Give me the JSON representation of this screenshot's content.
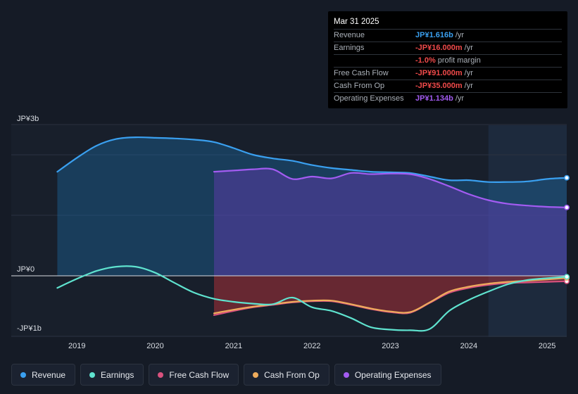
{
  "tooltip": {
    "date": "Mar 31 2025",
    "rows": [
      {
        "label": "Revenue",
        "value": "JP¥1.616b",
        "unit": "/yr",
        "color": "#3aa0f0"
      },
      {
        "label": "Earnings",
        "value": "-JP¥16.000m",
        "unit": "/yr",
        "color": "#f04a4a"
      },
      {
        "label": "",
        "value": "-1.0%",
        "unit": "profit margin",
        "color": "#f04a4a"
      },
      {
        "label": "Free Cash Flow",
        "value": "-JP¥91.000m",
        "unit": "/yr",
        "color": "#f04a4a"
      },
      {
        "label": "Cash From Op",
        "value": "-JP¥35.000m",
        "unit": "/yr",
        "color": "#f04a4a"
      },
      {
        "label": "Operating Expenses",
        "value": "JP¥1.134b",
        "unit": "/yr",
        "color": "#a35cf2"
      }
    ]
  },
  "legend": [
    {
      "label": "Revenue",
      "color": "#3aa0f0"
    },
    {
      "label": "Earnings",
      "color": "#5fe3cf"
    },
    {
      "label": "Free Cash Flow",
      "color": "#d9527e"
    },
    {
      "label": "Cash From Op",
      "color": "#eeac5c"
    },
    {
      "label": "Operating Expenses",
      "color": "#a35cf2"
    }
  ],
  "chart_data": {
    "type": "area",
    "y_tick_labels": [
      "JP¥3b",
      "JP¥0",
      "-JP¥1b"
    ],
    "ylim": [
      -1.0,
      2.5
    ],
    "xlim": [
      2018.45,
      2025.25
    ],
    "x_tick_labels": [
      "2019",
      "2020",
      "2021",
      "2022",
      "2023",
      "2024",
      "2025"
    ],
    "x_ticks": [
      2019,
      2020,
      2021,
      2022,
      2023,
      2024,
      2025
    ],
    "forecast_shade_start": 2024.25,
    "series": [
      {
        "name": "Revenue",
        "color": "#3aa0f0",
        "x": [
          2018.75,
          2019.0,
          2019.25,
          2019.5,
          2019.75,
          2020.0,
          2020.25,
          2020.5,
          2020.75,
          2021.0,
          2021.25,
          2021.5,
          2021.75,
          2022.0,
          2022.25,
          2022.5,
          2022.75,
          2023.0,
          2023.25,
          2023.5,
          2023.75,
          2024.0,
          2024.25,
          2024.5,
          2024.75,
          2025.0,
          2025.25
        ],
        "values": [
          1.72,
          1.95,
          2.15,
          2.26,
          2.29,
          2.28,
          2.27,
          2.25,
          2.21,
          2.11,
          2.0,
          1.94,
          1.9,
          1.83,
          1.78,
          1.75,
          1.72,
          1.71,
          1.7,
          1.64,
          1.58,
          1.58,
          1.55,
          1.55,
          1.56,
          1.6,
          1.62
        ]
      },
      {
        "name": "Operating Expenses",
        "color": "#a35cf2",
        "x": [
          2020.75,
          2021.0,
          2021.25,
          2021.5,
          2021.75,
          2022.0,
          2022.25,
          2022.5,
          2022.75,
          2023.0,
          2023.25,
          2023.5,
          2023.75,
          2024.0,
          2024.25,
          2024.5,
          2024.75,
          2025.0,
          2025.25
        ],
        "values": [
          1.72,
          1.74,
          1.76,
          1.76,
          1.6,
          1.64,
          1.61,
          1.7,
          1.68,
          1.69,
          1.68,
          1.6,
          1.48,
          1.35,
          1.25,
          1.19,
          1.16,
          1.14,
          1.13
        ]
      },
      {
        "name": "Earnings",
        "color": "#5fe3cf",
        "x": [
          2018.75,
          2019.0,
          2019.25,
          2019.5,
          2019.75,
          2020.0,
          2020.25,
          2020.5,
          2020.75,
          2021.0,
          2021.25,
          2021.5,
          2021.75,
          2022.0,
          2022.25,
          2022.5,
          2022.75,
          2023.0,
          2023.25,
          2023.5,
          2023.75,
          2024.0,
          2024.25,
          2024.5,
          2024.75,
          2025.0,
          2025.25
        ],
        "values": [
          -0.2,
          -0.05,
          0.08,
          0.15,
          0.15,
          0.05,
          -0.12,
          -0.28,
          -0.38,
          -0.43,
          -0.46,
          -0.47,
          -0.36,
          -0.52,
          -0.58,
          -0.7,
          -0.85,
          -0.89,
          -0.9,
          -0.88,
          -0.58,
          -0.4,
          -0.26,
          -0.14,
          -0.07,
          -0.04,
          -0.016
        ]
      },
      {
        "name": "Free Cash Flow",
        "color": "#d9527e",
        "x": [
          2020.75,
          2021.0,
          2021.25,
          2021.5,
          2021.75,
          2022.0,
          2022.25,
          2022.5,
          2022.75,
          2023.0,
          2023.25,
          2023.5,
          2023.75,
          2024.0,
          2024.25,
          2024.5,
          2024.75,
          2025.0,
          2025.25
        ],
        "values": [
          -0.65,
          -0.58,
          -0.52,
          -0.48,
          -0.44,
          -0.42,
          -0.42,
          -0.48,
          -0.55,
          -0.6,
          -0.61,
          -0.45,
          -0.28,
          -0.2,
          -0.15,
          -0.12,
          -0.11,
          -0.1,
          -0.091
        ]
      },
      {
        "name": "Cash From Op",
        "color": "#eeac5c",
        "x": [
          2020.75,
          2021.0,
          2021.25,
          2021.5,
          2021.75,
          2022.0,
          2022.25,
          2022.5,
          2022.75,
          2023.0,
          2023.25,
          2023.5,
          2023.75,
          2024.0,
          2024.25,
          2024.5,
          2024.75,
          2025.0,
          2025.25
        ],
        "values": [
          -0.62,
          -0.56,
          -0.51,
          -0.47,
          -0.43,
          -0.41,
          -0.41,
          -0.47,
          -0.54,
          -0.59,
          -0.6,
          -0.44,
          -0.26,
          -0.18,
          -0.13,
          -0.1,
          -0.08,
          -0.06,
          -0.035
        ]
      }
    ]
  }
}
